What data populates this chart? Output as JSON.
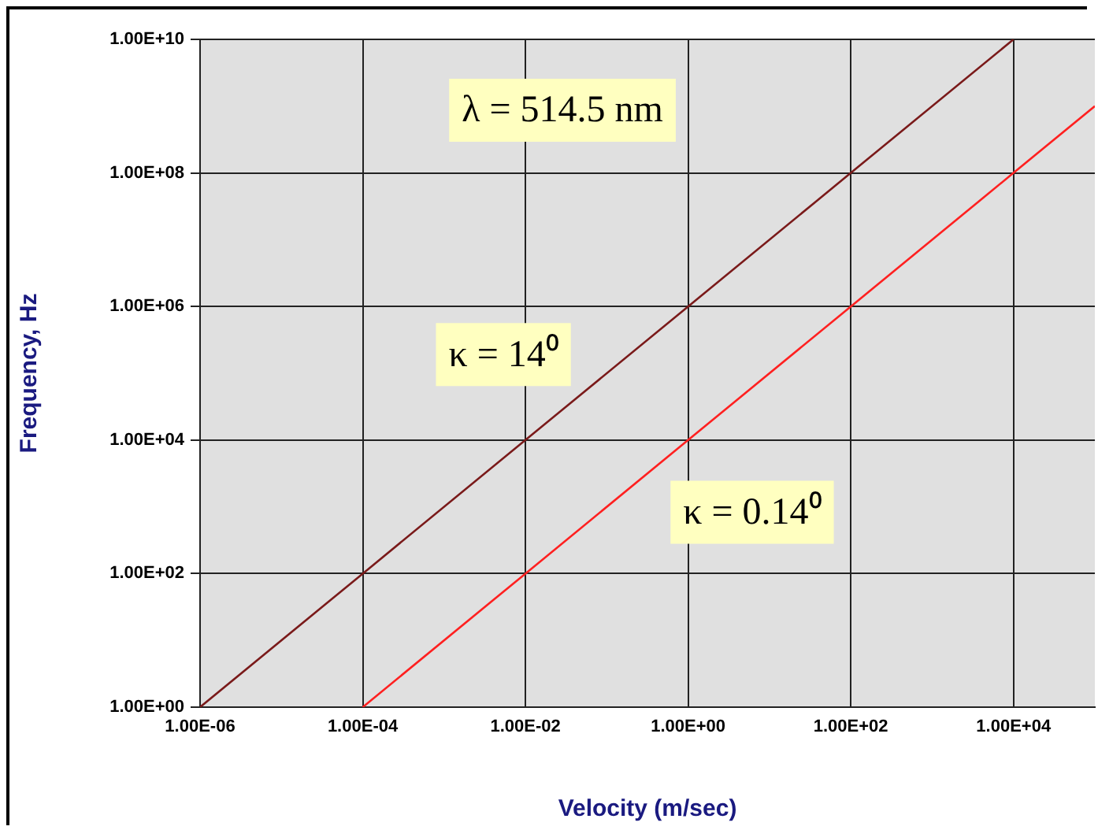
{
  "chart_data": {
    "type": "line",
    "xlabel": "Velocity (m/sec)",
    "ylabel": "Frequency, Hz",
    "log": "xy",
    "grid": true,
    "xlim": [
      1e-06,
      100000.0
    ],
    "ylim": [
      1,
      10000000000.0
    ],
    "xticks": [
      {
        "value": 1e-06,
        "label": "1.00E-06"
      },
      {
        "value": 0.0001,
        "label": "1.00E-04"
      },
      {
        "value": 0.01,
        "label": "1.00E-02"
      },
      {
        "value": 1,
        "label": "1.00E+00"
      },
      {
        "value": 100,
        "label": "1.00E+02"
      },
      {
        "value": 10000,
        "label": "1.00E+04"
      }
    ],
    "yticks": [
      {
        "value": 1,
        "label": "1.00E+00"
      },
      {
        "value": 100,
        "label": "1.00E+02"
      },
      {
        "value": 10000,
        "label": "1.00E+04"
      },
      {
        "value": 1000000.0,
        "label": "1.00E+06"
      },
      {
        "value": 100000000.0,
        "label": "1.00E+08"
      },
      {
        "value": 10000000000.0,
        "label": "1.00E+10"
      }
    ],
    "series": [
      {
        "color": "#7a1a1a",
        "x": [
          1e-06,
          0.0001,
          0.01,
          1,
          100,
          10000
        ],
        "values": [
          1,
          100,
          10000,
          1000000.0,
          100000000.0,
          10000000000.0
        ]
      },
      {
        "color": "#ff2020",
        "x": [
          0.0001,
          0.01,
          1,
          100,
          10000,
          100000.0
        ],
        "values": [
          1,
          100,
          10000,
          1000000.0,
          100000000.0,
          1000000000.0
        ]
      }
    ],
    "annotations": [
      "λ = 514.5 nm",
      "κ = 14⁰",
      "κ = 0.14⁰"
    ]
  }
}
